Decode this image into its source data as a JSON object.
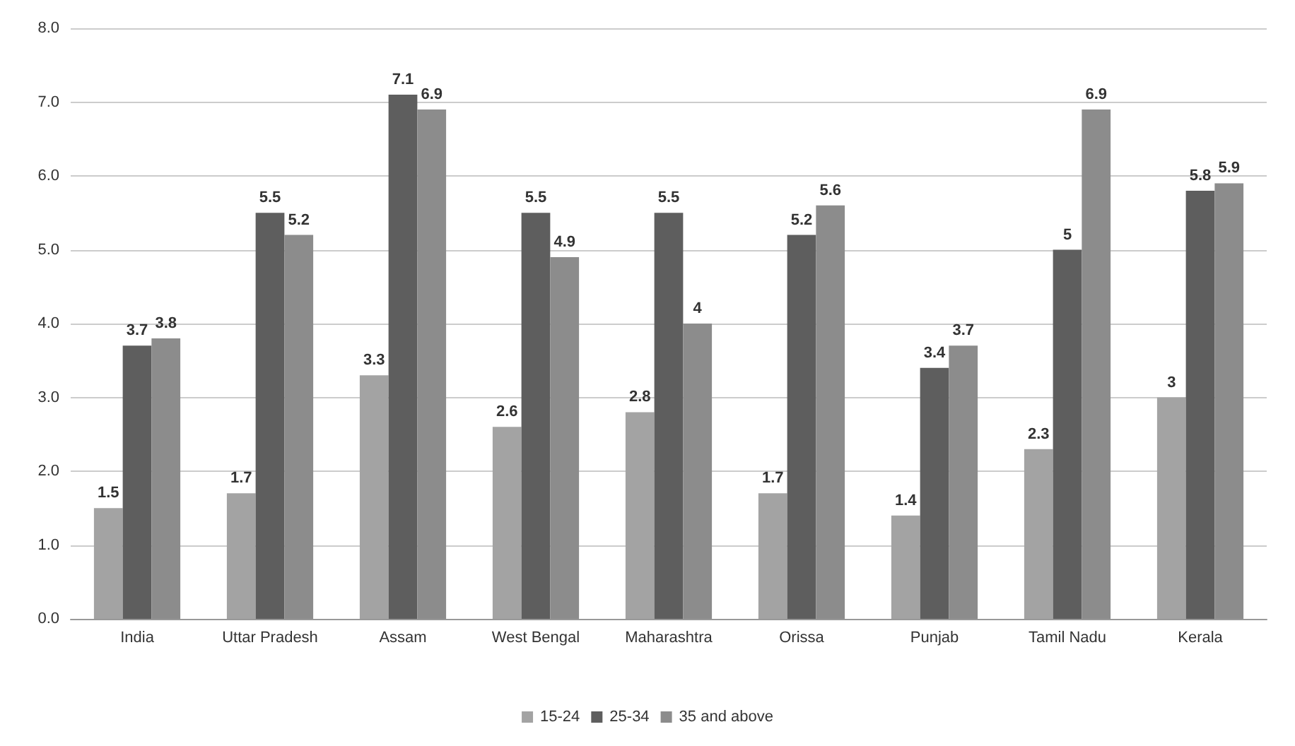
{
  "chart_data": {
    "type": "bar",
    "categories": [
      "India",
      "Uttar Pradesh",
      "Assam",
      "West Bengal",
      "Maharashtra",
      "Orissa",
      "Punjab",
      "Tamil Nadu",
      "Kerala"
    ],
    "series": [
      {
        "name": "15-24",
        "color": "#a3a3a3",
        "values": [
          1.5,
          1.7,
          3.3,
          2.6,
          2.8,
          1.7,
          1.4,
          2.3,
          3
        ],
        "value_labels": [
          "1.5",
          "1.7",
          "3.3",
          "2.6",
          "2.8",
          "1.7",
          "1.4",
          "2.3",
          "3"
        ]
      },
      {
        "name": "25-34",
        "color": "#5e5e5e",
        "values": [
          3.7,
          5.5,
          7.1,
          5.5,
          5.5,
          5.2,
          3.4,
          5,
          5.8
        ],
        "value_labels": [
          "3.7",
          "5.5",
          "7.1",
          "5.5",
          "5.5",
          "5.2",
          "3.4",
          "5",
          "5.8"
        ]
      },
      {
        "name": "35 and above",
        "color": "#8c8c8c",
        "values": [
          3.8,
          5.2,
          6.9,
          4.9,
          4,
          5.6,
          3.7,
          6.9,
          5.9
        ],
        "value_labels": [
          "3.8",
          "5.2",
          "6.9",
          "4.9",
          "4",
          "5.6",
          "3.7",
          "6.9",
          "5.9"
        ]
      }
    ],
    "ylim": [
      0,
      8
    ],
    "yticks": [
      {
        "value": 0,
        "label": "0.0"
      },
      {
        "value": 1,
        "label": "1.0"
      },
      {
        "value": 2,
        "label": "2.0"
      },
      {
        "value": 3,
        "label": "3.0"
      },
      {
        "value": 4,
        "label": "4.0"
      },
      {
        "value": 5,
        "label": "5.0"
      },
      {
        "value": 6,
        "label": "6.0"
      },
      {
        "value": 7,
        "label": "7.0"
      },
      {
        "value": 8,
        "label": "8.0"
      }
    ],
    "grid": "y",
    "legend": "bottom"
  }
}
